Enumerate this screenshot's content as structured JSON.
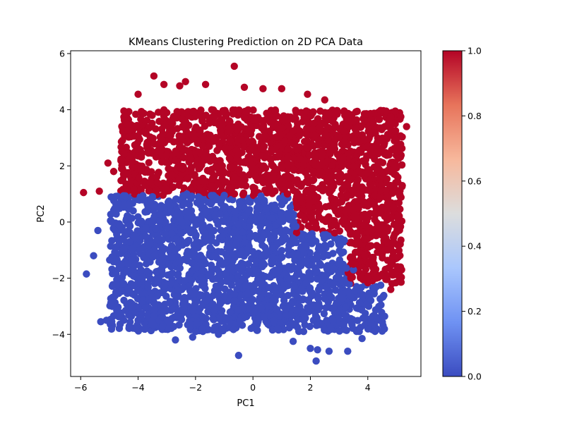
{
  "chart_data": {
    "type": "scatter",
    "title": "KMeans Clustering Prediction on 2D PCA Data",
    "xlabel": "PC1",
    "ylabel": "PC2",
    "xlim": [
      -6.35,
      5.85
    ],
    "ylim": [
      -5.5,
      6.1
    ],
    "xticks": [
      -6,
      -4,
      -2,
      0,
      2,
      4
    ],
    "yticks": [
      -4,
      -2,
      0,
      2,
      4,
      6
    ],
    "grid": false,
    "colormap": "coolwarm",
    "colorbar": {
      "range": [
        0.0,
        1.0
      ],
      "ticks": [
        "0.0",
        "0.2",
        "0.4",
        "0.6",
        "0.8",
        "1.0"
      ],
      "colors": [
        "#3b4cc0",
        "#6f92f3",
        "#aac7fd",
        "#dcdddd",
        "#f7b89c",
        "#e7745b",
        "#b40426"
      ]
    },
    "series": [
      {
        "cluster": 0,
        "color": "#3b4cc0",
        "region": "PC1 from about -5.6 to 4.6, PC2 from about -4.7 up to about 1.0 (lower band)",
        "points": [
          [
            -5.8,
            -1.85
          ],
          [
            -5.55,
            -1.2
          ],
          [
            -5.4,
            -0.3
          ],
          [
            -5.3,
            -3.55
          ],
          [
            -5.1,
            -3.5
          ],
          [
            -4.5,
            -3.5
          ],
          [
            -4.0,
            -3.5
          ],
          [
            -2.7,
            -4.2
          ],
          [
            -2.1,
            -4.1
          ],
          [
            -2.0,
            -3.9
          ],
          [
            -0.5,
            -4.75
          ],
          [
            1.4,
            -4.25
          ],
          [
            2.0,
            -4.5
          ],
          [
            2.2,
            -4.95
          ],
          [
            2.25,
            -4.55
          ],
          [
            2.65,
            -4.6
          ],
          [
            3.3,
            -4.6
          ],
          [
            3.8,
            -4.15
          ],
          [
            4.45,
            -2.25
          ],
          [
            -4.3,
            0.6
          ],
          [
            -3.5,
            0.9
          ],
          [
            -2.3,
            1.0
          ],
          [
            -1.0,
            0.95
          ],
          [
            0.4,
            0.7
          ],
          [
            1.2,
            0.3
          ],
          [
            2.0,
            -0.5
          ],
          [
            3.0,
            -0.8
          ],
          [
            3.5,
            -1.7
          ],
          [
            4.3,
            -2.3
          ],
          [
            -1.2,
            -4.0
          ]
        ]
      },
      {
        "cluster": 1,
        "color": "#b40426",
        "region": "PC1 from about -5.9 to 5.3, PC2 from about 1.0 to 5.6 plus a right-side lobe (PC1 3.5-5.3) reaching down to about -2.4",
        "points": [
          [
            -5.9,
            1.05
          ],
          [
            -5.35,
            1.1
          ],
          [
            -5.05,
            2.1
          ],
          [
            -4.85,
            1.8
          ],
          [
            -4.0,
            4.55
          ],
          [
            -3.45,
            5.2
          ],
          [
            -3.1,
            4.9
          ],
          [
            -2.35,
            5.0
          ],
          [
            -2.55,
            4.85
          ],
          [
            -1.65,
            4.9
          ],
          [
            -0.65,
            5.55
          ],
          [
            -0.3,
            4.8
          ],
          [
            0.35,
            4.75
          ],
          [
            1.0,
            4.75
          ],
          [
            1.9,
            4.55
          ],
          [
            2.5,
            4.35
          ],
          [
            4.4,
            3.65
          ],
          [
            4.8,
            3.75
          ],
          [
            5.15,
            3.75
          ],
          [
            5.35,
            3.4
          ],
          [
            4.8,
            -2.4
          ],
          [
            4.6,
            -1.0
          ],
          [
            4.3,
            -2.0
          ],
          [
            3.5,
            -1.5
          ],
          [
            3.6,
            -0.4
          ],
          [
            1.5,
            0.8
          ],
          [
            1.2,
            1.0
          ],
          [
            5.0,
            2.0
          ],
          [
            5.2,
            1.3
          ],
          [
            4.9,
            0.5
          ]
        ]
      }
    ]
  }
}
